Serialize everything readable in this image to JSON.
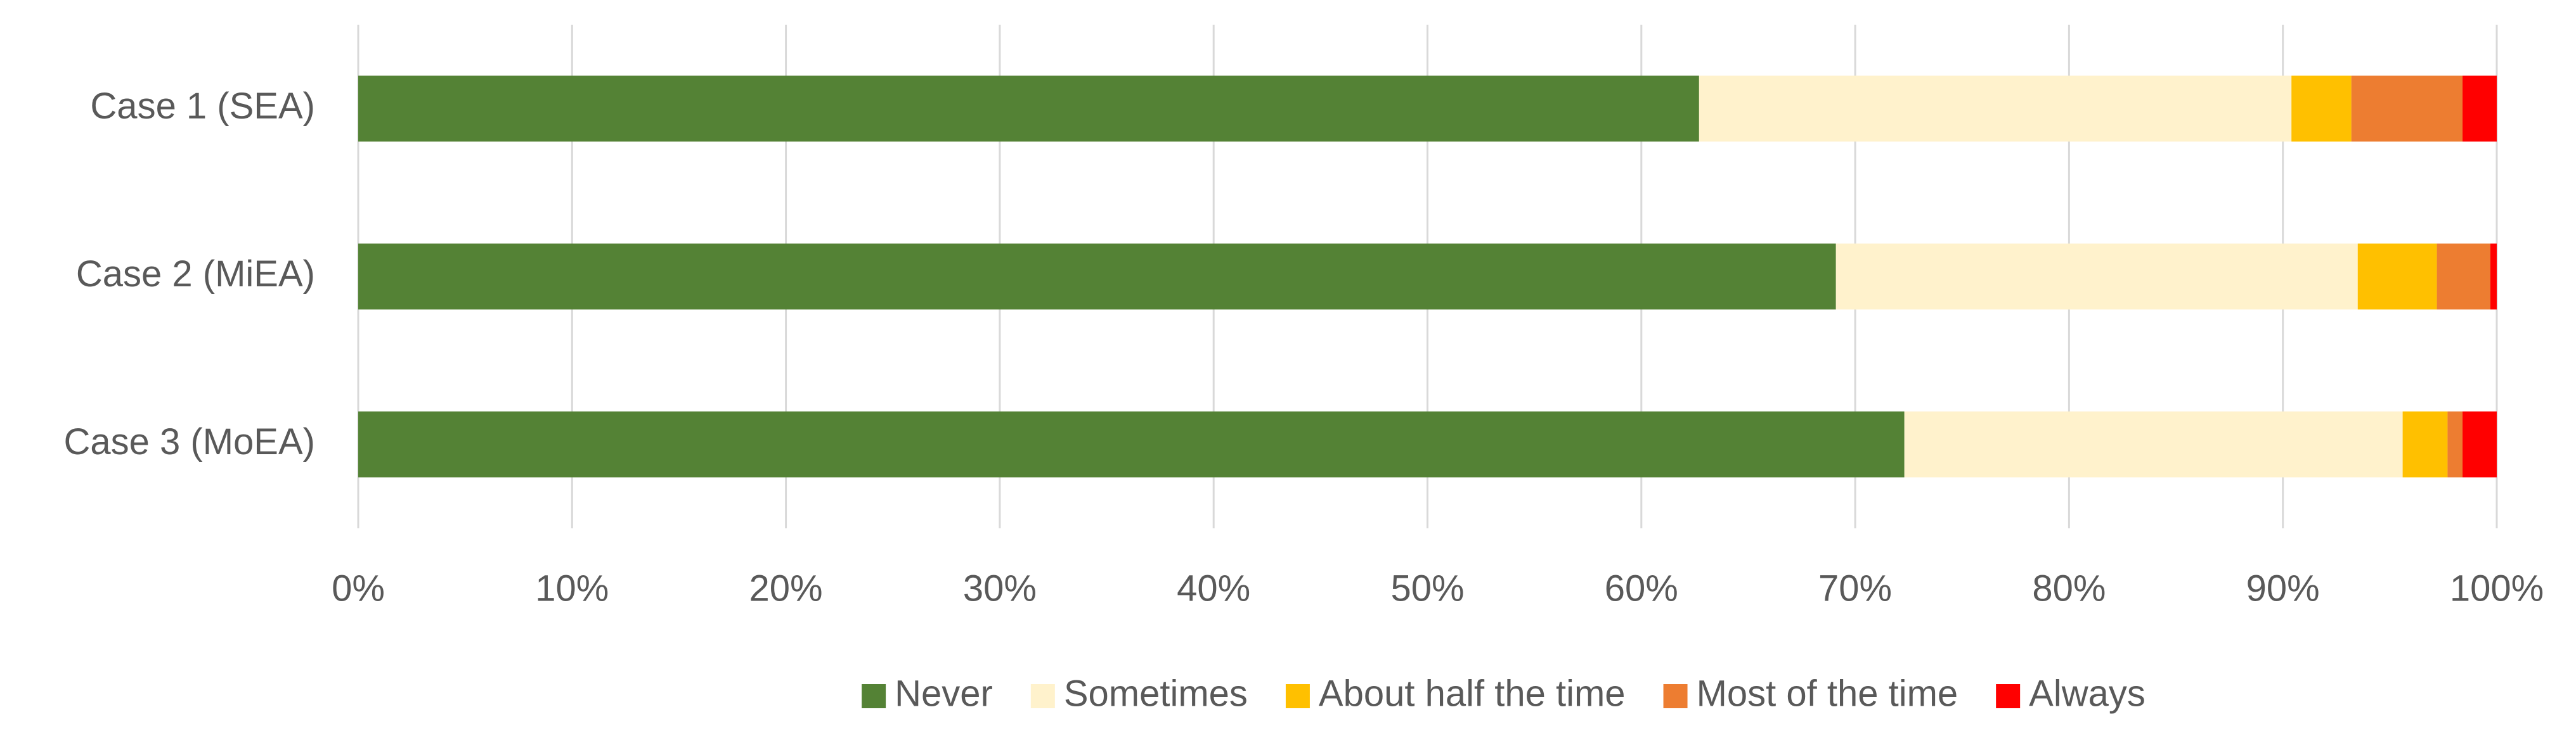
{
  "chart_data": {
    "type": "stacked-bar-horizontal",
    "categories": [
      "Case 1 (SEA)",
      "Case 2 (MiEA)",
      "Case 3 (MoEA)"
    ],
    "series": [
      {
        "name": "Never",
        "color": "#548235",
        "values": [
          62.7,
          69.1,
          72.3
        ]
      },
      {
        "name": "Sometimes",
        "color": "#fff2cc",
        "values": [
          27.7,
          24.4,
          23.3
        ]
      },
      {
        "name": "About half the time",
        "color": "#ffc000",
        "values": [
          2.8,
          3.7,
          2.1
        ]
      },
      {
        "name": "Most of the time",
        "color": "#ed7d31",
        "values": [
          5.2,
          2.5,
          0.7
        ]
      },
      {
        "name": "Always",
        "color": "#ff0000",
        "values": [
          1.6,
          0.3,
          1.6
        ]
      }
    ],
    "xlim": [
      0,
      100
    ],
    "xticks": [
      {
        "value": 0,
        "label": "0%"
      },
      {
        "value": 10,
        "label": "10%"
      },
      {
        "value": 20,
        "label": "20%"
      },
      {
        "value": 30,
        "label": "30%"
      },
      {
        "value": 40,
        "label": "40%"
      },
      {
        "value": 50,
        "label": "50%"
      },
      {
        "value": 60,
        "label": "60%"
      },
      {
        "value": 70,
        "label": "70%"
      },
      {
        "value": 80,
        "label": "80%"
      },
      {
        "value": 90,
        "label": "90%"
      },
      {
        "value": 100,
        "label": "100%"
      }
    ],
    "grid": true,
    "legend": "bottom"
  }
}
